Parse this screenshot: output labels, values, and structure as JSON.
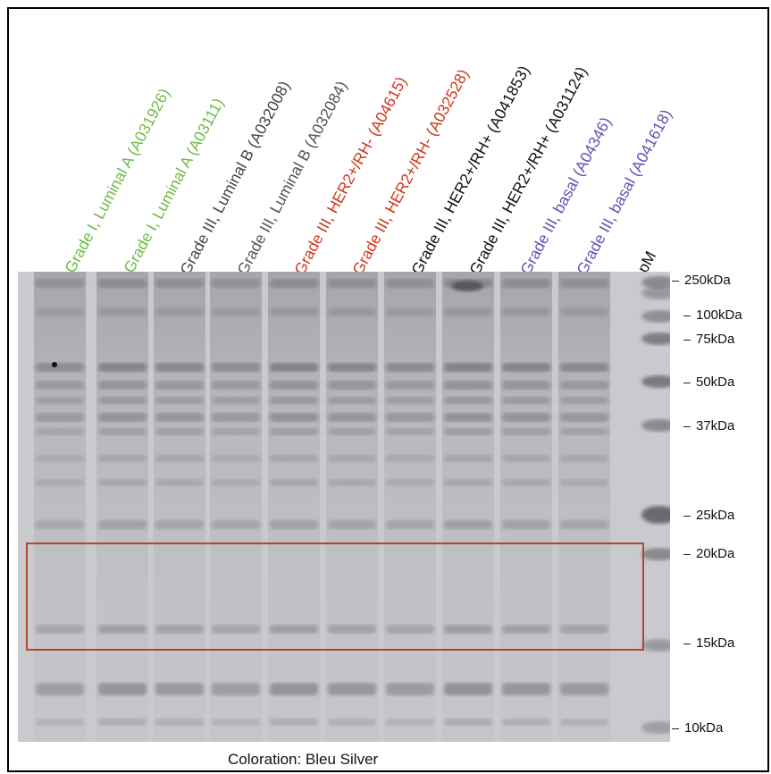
{
  "lanes": [
    {
      "label": "Grade I, Luminal A (A031926)",
      "color": "#6dbb47"
    },
    {
      "label": "Grade I, Luminal A (A03111)",
      "color": "#6dbb47"
    },
    {
      "label": "Grade III, Luminal B (A032008)",
      "color": "#444444"
    },
    {
      "label": "Grade III, Luminal B (A032084)",
      "color": "#555555"
    },
    {
      "label": "Grade III, HER2+/RH- (A04615)",
      "color": "#d0361b"
    },
    {
      "label": "Grade III, HER2+/RH- (A032528)",
      "color": "#d0361b"
    },
    {
      "label": "Grade III, HER2+/RH+ (A041853)",
      "color": "#111111"
    },
    {
      "label": "Grade III, HER2+/RH+ (A031124)",
      "color": "#111111"
    },
    {
      "label": "Grade III, basal (A04346)",
      "color": "#5b55b5"
    },
    {
      "label": "Grade III, basal  (A041618)",
      "color": "#5b55b5"
    },
    {
      "label": "pM",
      "color": "#111111"
    }
  ],
  "markers": [
    {
      "label": "250kDa"
    },
    {
      "label": "100kDa"
    },
    {
      "label": "75kDa"
    },
    {
      "label": "50kDa"
    },
    {
      "label": "37kDa"
    },
    {
      "label": "25kDa"
    },
    {
      "label": "20kDa"
    },
    {
      "label": "15kDa"
    },
    {
      "label": "10kDa"
    }
  ],
  "caption": "Coloration: Bleu Silver",
  "colors": {
    "highlight_box": "#b5452d",
    "gel_background": "#c9cacd"
  }
}
